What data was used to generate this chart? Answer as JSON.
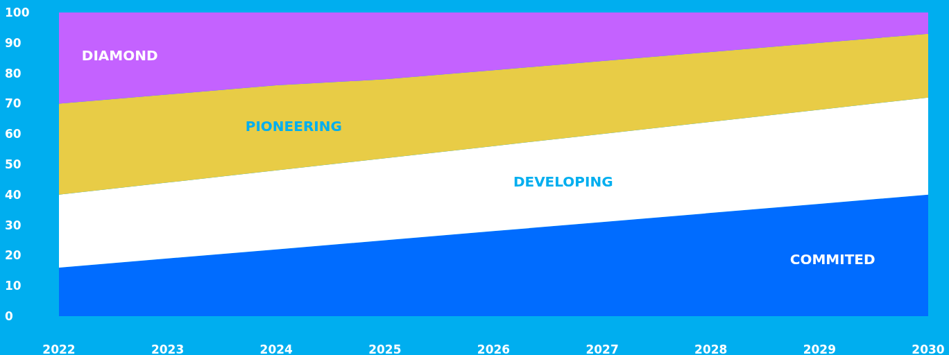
{
  "chart_data": {
    "type": "area",
    "stacked": true,
    "x": [
      2022,
      2023,
      2024,
      2025,
      2026,
      2027,
      2028,
      2029,
      2030
    ],
    "series": [
      {
        "name": "COMMITED",
        "color": "#006cff",
        "values": [
          16,
          19,
          22,
          25,
          28,
          31,
          34,
          37,
          40
        ]
      },
      {
        "name": "DEVELOPING",
        "color": "#ffffff",
        "values": [
          24,
          25,
          26,
          27,
          28,
          29,
          30,
          31,
          32
        ]
      },
      {
        "name": "PIONEERING",
        "color": "#e8cc46",
        "values": [
          30,
          29,
          28,
          26,
          25,
          24,
          23,
          22,
          21
        ]
      },
      {
        "name": "DIAMOND",
        "color": "#c462ff",
        "values": [
          30,
          27,
          24,
          22,
          19,
          16,
          13,
          10,
          7
        ]
      }
    ],
    "xlim": [
      2022,
      2030
    ],
    "xticks": [
      2022,
      2023,
      2024,
      2025,
      2026,
      2027,
      2028,
      2029,
      2030
    ],
    "ylim": [
      0,
      100
    ],
    "yticks": [
      0,
      10,
      20,
      30,
      40,
      50,
      60,
      70,
      80,
      90,
      100
    ],
    "grid": false,
    "legend": false
  }
}
